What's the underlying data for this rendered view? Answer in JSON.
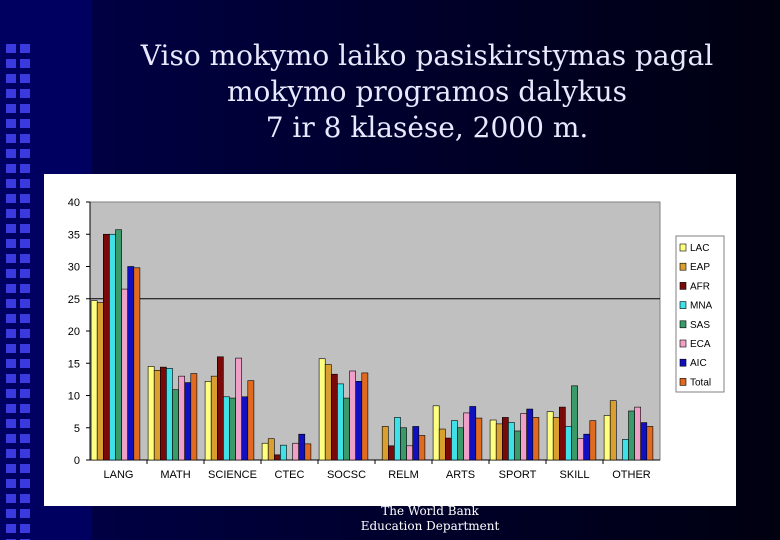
{
  "slide": {
    "title_lines": [
      "Viso mokymo laiko pasiskirstymas pagal",
      "mokymo programos dalykus",
      "7 ir 8 klasėse, 2000 m."
    ],
    "footer_lines": [
      "The World Bank",
      "Education Department"
    ]
  },
  "chart_data": {
    "type": "bar",
    "title": "",
    "xlabel": "",
    "ylabel": "",
    "ylim": [
      0,
      40
    ],
    "yticks": [
      0,
      5,
      10,
      15,
      20,
      25,
      30,
      35,
      40
    ],
    "reference_line": 25,
    "grid": false,
    "legend_position": "right",
    "plot_background": "#c0c0c0",
    "categories": [
      "LANG",
      "MATH",
      "SCIENCE",
      "CTEC",
      "SOCSC",
      "RELM",
      "ARTS",
      "SPORT",
      "SKILL",
      "OTHER"
    ],
    "series": [
      {
        "name": "LAC",
        "color": "#ffff80",
        "values": [
          24.7,
          14.5,
          12.2,
          2.6,
          15.7,
          0.0,
          8.4,
          6.2,
          7.5,
          6.9
        ]
      },
      {
        "name": "EAP",
        "color": "#d9a030",
        "values": [
          24.4,
          13.9,
          13.0,
          3.3,
          14.8,
          5.2,
          4.8,
          5.6,
          6.6,
          9.2
        ]
      },
      {
        "name": "AFR",
        "color": "#7a0a0a",
        "values": [
          35.0,
          14.4,
          16.0,
          0.8,
          13.3,
          2.2,
          3.4,
          6.6,
          8.2,
          0.0
        ]
      },
      {
        "name": "MNA",
        "color": "#40e0e8",
        "values": [
          35.0,
          14.2,
          9.8,
          2.3,
          11.8,
          6.6,
          6.1,
          5.8,
          5.2,
          3.2
        ]
      },
      {
        "name": "SAS",
        "color": "#3a9a6a",
        "values": [
          35.7,
          10.9,
          9.6,
          0.0,
          9.6,
          5.0,
          5.0,
          4.5,
          11.5,
          7.6
        ]
      },
      {
        "name": "ECA",
        "color": "#f0a0c8",
        "values": [
          26.5,
          13.0,
          15.8,
          2.6,
          13.8,
          2.2,
          7.3,
          7.2,
          3.3,
          8.2
        ]
      },
      {
        "name": "AIC",
        "color": "#1010c0",
        "values": [
          30.0,
          12.0,
          9.8,
          4.0,
          12.2,
          5.2,
          8.3,
          7.9,
          4.0,
          5.8
        ]
      },
      {
        "name": "Total",
        "color": "#e06a20",
        "values": [
          29.8,
          13.4,
          12.3,
          2.5,
          13.5,
          3.8,
          6.5,
          6.6,
          6.1,
          5.2
        ]
      }
    ]
  }
}
